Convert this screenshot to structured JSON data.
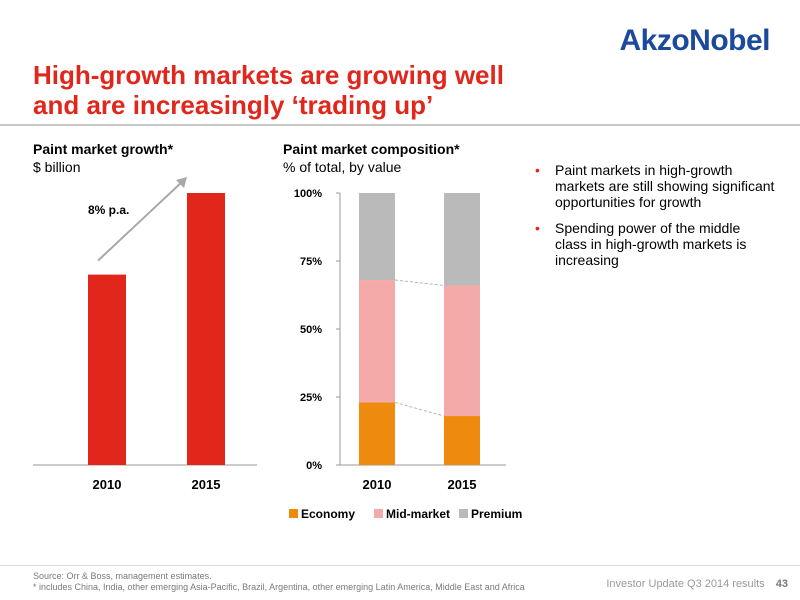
{
  "brand": {
    "logo_text": "AkzoNobel",
    "color": "#1b4a9c"
  },
  "slide": {
    "title_line1": "High-growth markets are growing well",
    "title_line2": "and are increasingly ‘trading up’",
    "title_color": "#e1261c"
  },
  "left_chart": {
    "title": "Paint market growth*",
    "subtitle": "$ billion",
    "growth_label": "8% p.a."
  },
  "right_chart": {
    "title": "Paint market composition*",
    "subtitle": "% of total, by value"
  },
  "bullets": [
    {
      "text": "Paint markets in high-growth markets are still showing significant opportunities for growth"
    },
    {
      "text": "Spending power of the middle class in high-growth markets is increasing"
    }
  ],
  "footer": {
    "source_line1": "Source:  Orr & Boss, management estimates.",
    "source_line2": "* includes China, India, other emerging Asia-Pacific, Brazil, Argentina, other emerging Latin America, Middle East and Africa",
    "presentation": "Investor Update Q3 2014 results",
    "page_number": "43"
  },
  "chart_data": [
    {
      "type": "bar",
      "title": "Paint market growth*",
      "ylabel": "$ billion",
      "categories": [
        "2010",
        "2015"
      ],
      "values": [
        70,
        100
      ],
      "ylim": [
        0,
        100
      ],
      "color": "#e1261c",
      "annotation": "8% p.a.",
      "grid": false
    },
    {
      "type": "bar",
      "stacked": true,
      "title": "Paint market composition*",
      "ylabel": "% of total, by value",
      "categories": [
        "2010",
        "2015"
      ],
      "yticks": [
        "0%",
        "25%",
        "50%",
        "75%",
        "100%"
      ],
      "ylim": [
        0,
        100
      ],
      "series": [
        {
          "name": "Economy",
          "values": [
            23,
            18
          ],
          "color": "#ee8a0d"
        },
        {
          "name": "Mid-market",
          "values": [
            45,
            48
          ],
          "color": "#f5aaaa"
        },
        {
          "name": "Premium",
          "values": [
            32,
            34
          ],
          "color": "#bababa"
        }
      ],
      "legend": "bottom",
      "grid": false
    }
  ]
}
